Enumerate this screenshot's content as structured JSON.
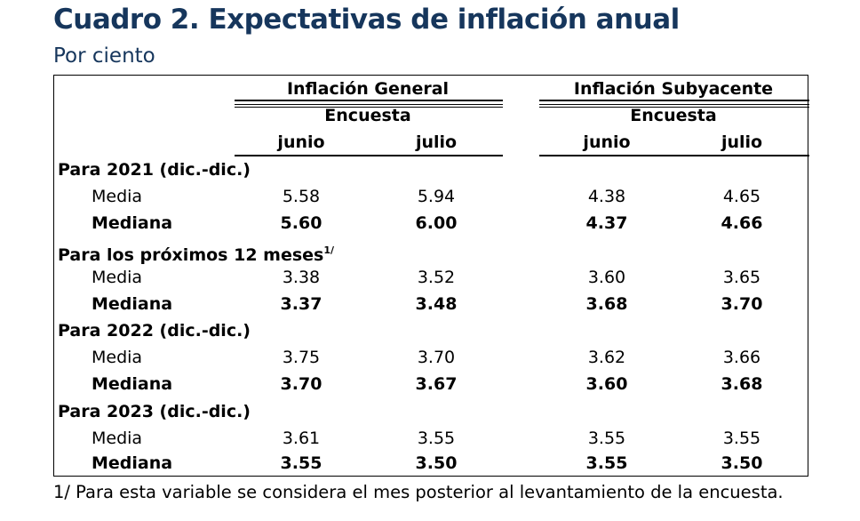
{
  "title": "Cuadro 2. Expectativas de inflación anual",
  "subtitle": "Por ciento",
  "groups": [
    {
      "label": "Inflación General",
      "sub": "Encuesta",
      "months": [
        "junio",
        "julio"
      ]
    },
    {
      "label": "Inflación Subyacente",
      "sub": "Encuesta",
      "months": [
        "junio",
        "julio"
      ]
    }
  ],
  "sections": [
    {
      "label": "Para 2021 (dic.-dic.)",
      "sup": "",
      "rows": [
        {
          "label": "Media",
          "values": [
            "5.58",
            "5.94",
            "4.38",
            "4.65"
          ]
        },
        {
          "label": "Mediana",
          "values": [
            "5.60",
            "6.00",
            "4.37",
            "4.66"
          ]
        }
      ]
    },
    {
      "label": "Para los próximos 12 meses",
      "sup": "1/",
      "rows": [
        {
          "label": "Media",
          "values": [
            "3.38",
            "3.52",
            "3.60",
            "3.65"
          ]
        },
        {
          "label": "Mediana",
          "values": [
            "3.37",
            "3.48",
            "3.68",
            "3.70"
          ]
        }
      ]
    },
    {
      "label": "Para 2022 (dic.-dic.)",
      "sup": "",
      "rows": [
        {
          "label": "Media",
          "values": [
            "3.75",
            "3.70",
            "3.62",
            "3.66"
          ]
        },
        {
          "label": "Mediana",
          "values": [
            "3.70",
            "3.67",
            "3.60",
            "3.68"
          ]
        }
      ]
    },
    {
      "label": "Para 2023 (dic.-dic.)",
      "sup": "",
      "rows": [
        {
          "label": "Media",
          "values": [
            "3.61",
            "3.55",
            "3.55",
            "3.55"
          ]
        },
        {
          "label": "Mediana",
          "values": [
            "3.55",
            "3.50",
            "3.55",
            "3.50"
          ]
        }
      ]
    }
  ],
  "footnote": "1/ Para esta variable se considera el mes posterior al levantamiento de la encuesta."
}
